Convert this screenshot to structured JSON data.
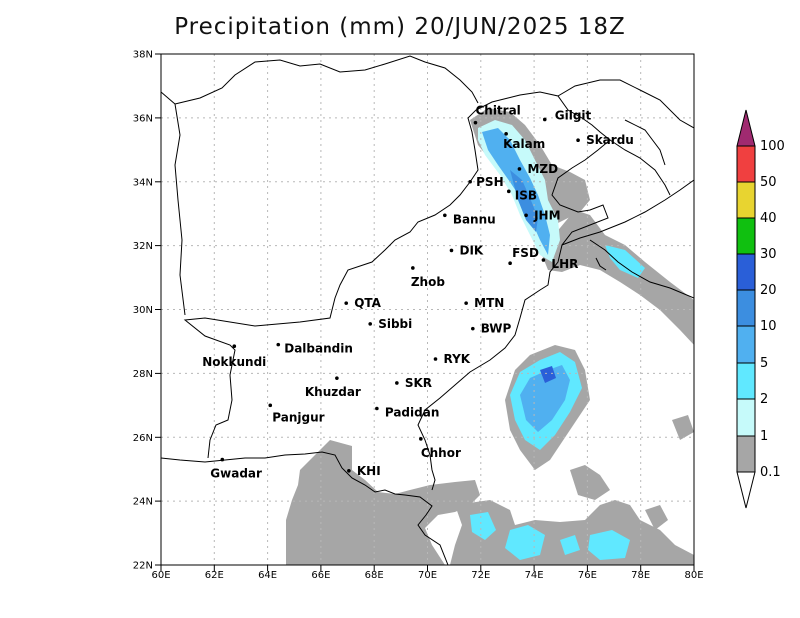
{
  "title": "Precipitation (mm) 20/JUN/2025 18Z",
  "lon_ticks": [
    "60E",
    "62E",
    "64E",
    "66E",
    "68E",
    "70E",
    "72E",
    "74E",
    "76E",
    "78E",
    "80E"
  ],
  "lat_ticks": [
    "22N",
    "24N",
    "26N",
    "28N",
    "30N",
    "32N",
    "34N",
    "36N",
    "38N"
  ],
  "stations": [
    {
      "name": "Chitral",
      "lon": 71.8,
      "lat": 35.85
    },
    {
      "name": "Gilgit",
      "lon": 74.4,
      "lat": 35.95
    },
    {
      "name": "Kalam",
      "lon": 72.95,
      "lat": 35.5
    },
    {
      "name": "Skardu",
      "lon": 75.65,
      "lat": 35.3
    },
    {
      "name": "MZD",
      "lon": 73.45,
      "lat": 34.4
    },
    {
      "name": "PSH",
      "lon": 71.6,
      "lat": 34.0
    },
    {
      "name": "ISB",
      "lon": 73.05,
      "lat": 33.7
    },
    {
      "name": "JHM",
      "lon": 73.7,
      "lat": 32.95
    },
    {
      "name": "Bannu",
      "lon": 70.65,
      "lat": 32.95
    },
    {
      "name": "DIK",
      "lon": 70.9,
      "lat": 31.85
    },
    {
      "name": "FSD",
      "lon": 73.1,
      "lat": 31.45
    },
    {
      "name": "LHR",
      "lon": 74.35,
      "lat": 31.55
    },
    {
      "name": "Zhob",
      "lon": 69.45,
      "lat": 31.3
    },
    {
      "name": "QTA",
      "lon": 66.95,
      "lat": 30.2
    },
    {
      "name": "MTN",
      "lon": 71.45,
      "lat": 30.2
    },
    {
      "name": "Sibbi",
      "lon": 67.85,
      "lat": 29.55
    },
    {
      "name": "BWP",
      "lon": 71.7,
      "lat": 29.4
    },
    {
      "name": "Nokkundi",
      "lon": 62.75,
      "lat": 28.85
    },
    {
      "name": "Dalbandin",
      "lon": 64.4,
      "lat": 28.9
    },
    {
      "name": "RYK",
      "lon": 70.3,
      "lat": 28.45
    },
    {
      "name": "Khuzdar",
      "lon": 66.6,
      "lat": 27.85
    },
    {
      "name": "SKR",
      "lon": 68.85,
      "lat": 27.7
    },
    {
      "name": "Padidan",
      "lon": 68.1,
      "lat": 26.9
    },
    {
      "name": "Panjgur",
      "lon": 64.1,
      "lat": 27.0
    },
    {
      "name": "Chhor",
      "lon": 69.75,
      "lat": 25.95
    },
    {
      "name": "Gwadar",
      "lon": 62.3,
      "lat": 25.3
    },
    {
      "name": "KHI",
      "lon": 67.05,
      "lat": 24.95
    }
  ],
  "colorbar": {
    "levels": [
      "0.1",
      "1",
      "2",
      "5",
      "10",
      "20",
      "30",
      "40",
      "50",
      "100"
    ],
    "colors": [
      "#a6a6a6",
      "#c6fafa",
      "#60e8ff",
      "#50b0f0",
      "#3c8ee0",
      "#2a5fd8",
      "#10c010",
      "#e8d430",
      "#f04040",
      "#a02a70"
    ]
  }
}
